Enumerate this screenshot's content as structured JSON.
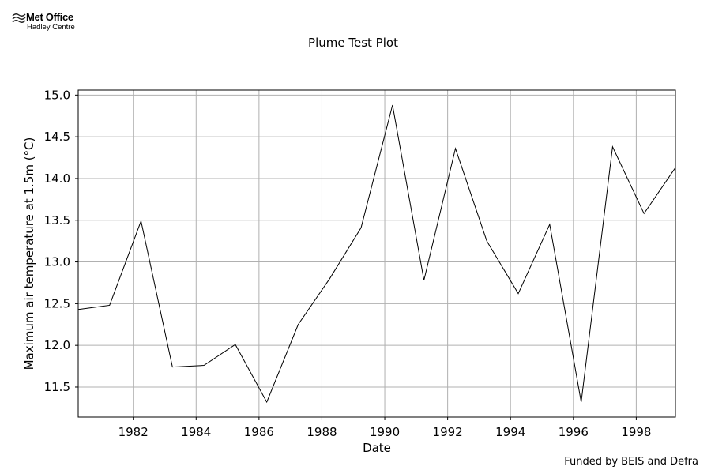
{
  "logo": {
    "name": "Met Office",
    "subtitle": "Hadley Centre"
  },
  "footer": {
    "funding_note": "Funded by BEIS and Defra"
  },
  "chart_data": {
    "type": "line",
    "title": "Plume Test Plot",
    "xlabel": "Date",
    "ylabel": "Maximum air temperature at 1.5m (°C)",
    "x_ticks": [
      "1982",
      "1984",
      "1986",
      "1988",
      "1990",
      "1992",
      "1994",
      "1996",
      "1998"
    ],
    "y_ticks": [
      "11.5",
      "12.0",
      "12.5",
      "13.0",
      "13.5",
      "14.0",
      "14.5",
      "15.0"
    ],
    "xlim": [
      "1980-04-01",
      "1999-04-01"
    ],
    "ylim": [
      11.14,
      15.06
    ],
    "grid": true,
    "line_color": "#000000",
    "series": [
      {
        "x": [
          "1980-04-01",
          "1981-04-01",
          "1982-04-01",
          "1983-04-01",
          "1984-04-01",
          "1985-04-01",
          "1986-04-01",
          "1987-04-01",
          "1988-04-01",
          "1989-04-01",
          "1990-04-01",
          "1991-04-01",
          "1992-04-01",
          "1993-04-01",
          "1994-04-01",
          "1995-04-01",
          "1996-04-01",
          "1997-04-01",
          "1998-04-01",
          "1999-04-01"
        ],
        "values": [
          12.43,
          12.48,
          13.49,
          11.74,
          11.76,
          12.01,
          11.32,
          12.25,
          12.8,
          13.41,
          14.88,
          12.78,
          14.36,
          13.25,
          12.62,
          13.45,
          11.32,
          14.38,
          13.58,
          14.13
        ]
      }
    ]
  }
}
